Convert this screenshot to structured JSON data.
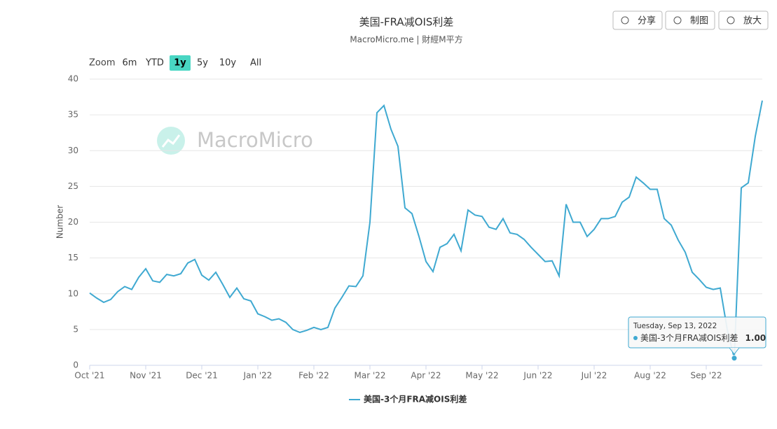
{
  "chart_data": {
    "type": "line",
    "title": "美国-FRA减OIS利差",
    "subtitle": "MacroMicro.me | 財經M平方",
    "y_label": "Number",
    "categories": [
      "Oct '21",
      null,
      null,
      null,
      null,
      null,
      null,
      null,
      "Nov '21",
      null,
      null,
      null,
      null,
      null,
      null,
      null,
      "Dec '21",
      null,
      null,
      null,
      null,
      null,
      null,
      null,
      "Jan '22",
      null,
      null,
      null,
      null,
      null,
      null,
      null,
      "Feb '22",
      null,
      null,
      null,
      null,
      null,
      null,
      null,
      "Mar '22",
      null,
      null,
      null,
      null,
      null,
      null,
      null,
      "Apr '22",
      null,
      null,
      null,
      null,
      null,
      null,
      null,
      "May '22",
      null,
      null,
      null,
      null,
      null,
      null,
      null,
      "Jun '22",
      null,
      null,
      null,
      null,
      null,
      null,
      null,
      "Jul '22",
      null,
      null,
      null,
      null,
      null,
      null,
      null,
      "Aug '22",
      null,
      null,
      null,
      null,
      null,
      null,
      null,
      "Sep '22",
      null,
      null,
      null,
      null,
      null,
      null,
      null,
      null
    ],
    "series": [
      {
        "name": "美国-3个月FRA减OIS利差",
        "color": "#3fa9d1",
        "values": [
          10.1,
          9.4,
          8.8,
          9.2,
          10.3,
          11.0,
          10.6,
          12.3,
          13.5,
          11.8,
          11.6,
          12.7,
          12.5,
          12.8,
          14.3,
          14.8,
          12.6,
          11.9,
          13.0,
          11.3,
          9.5,
          10.8,
          9.3,
          9.0,
          7.2,
          6.8,
          6.3,
          6.5,
          6.0,
          5.0,
          4.6,
          4.9,
          5.3,
          5.0,
          5.3,
          8.0,
          9.5,
          11.1,
          11.0,
          12.5,
          20.0,
          35.3,
          36.3,
          33.0,
          30.6,
          22.0,
          21.2,
          18.0,
          14.5,
          13.1,
          16.5,
          17.0,
          18.3,
          16.0,
          21.7,
          21.0,
          20.8,
          19.3,
          19.0,
          20.5,
          18.5,
          18.3,
          17.6,
          16.5,
          15.5,
          14.5,
          14.6,
          12.5,
          22.5,
          20.0,
          20.0,
          18.0,
          19.0,
          20.5,
          20.5,
          20.8,
          22.8,
          23.5,
          26.3,
          25.5,
          24.6,
          24.6,
          20.5,
          19.6,
          17.5,
          15.8,
          13.0,
          12.0,
          10.9,
          10.6,
          10.8,
          5.0,
          1.0,
          24.8,
          25.5,
          32.0,
          37.0
        ]
      }
    ],
    "ylim": [
      0,
      40
    ],
    "yticks": [
      0,
      5,
      10,
      15,
      20,
      25,
      30,
      35,
      40
    ],
    "grid": true,
    "tooltip": {
      "header": "Tuesday, Sep 13, 2022",
      "value_label": "1.00"
    },
    "range_selector": {
      "label": "Zoom",
      "buttons": [
        "6m",
        "YTD",
        "1y",
        "5y",
        "10y",
        "All"
      ],
      "selected": "1y"
    }
  },
  "toolbar": [
    "分享",
    "制图",
    "放大"
  ],
  "watermark": "MacroMicro"
}
